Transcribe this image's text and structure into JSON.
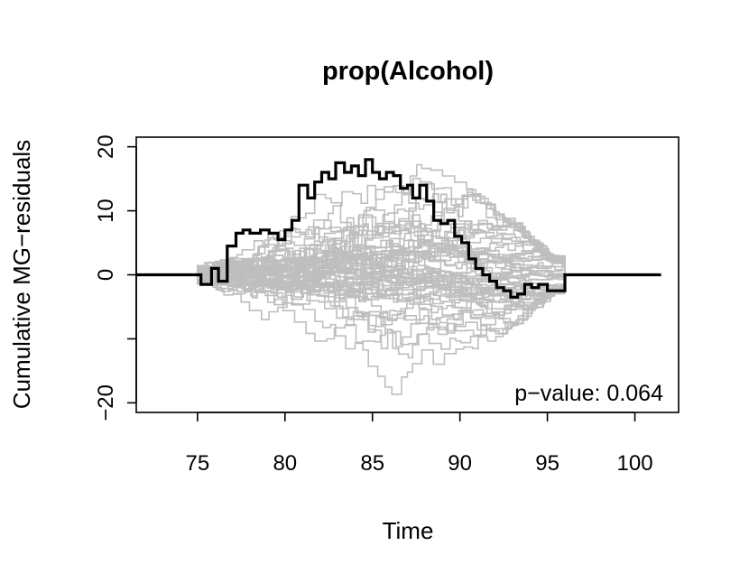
{
  "chart_data": {
    "type": "line",
    "title": "prop(Alcohol)",
    "xlabel": "Time",
    "ylabel": "Cumulative MG−residuals",
    "xlim": [
      71.5,
      102.5
    ],
    "ylim": [
      -21.5,
      21.5
    ],
    "x_ticks": [
      75,
      80,
      85,
      90,
      95,
      100
    ],
    "x_tick_labels": [
      "75",
      "80",
      "85",
      "90",
      "95",
      "100"
    ],
    "y_ticks": [
      -20,
      -10,
      0,
      10,
      20
    ],
    "y_tick_labels": [
      "−20",
      "",
      "0",
      "10",
      "20"
    ],
    "grid": false,
    "annotation": "p−value: 0.064",
    "colors": {
      "observed": "#000000",
      "simulated": "#bebebe"
    },
    "series": [
      {
        "role": "observed",
        "step": true,
        "x": [
          71.5,
          75.2,
          75.8,
          76.2,
          76.7,
          77.2,
          77.6,
          78.0,
          78.6,
          79.1,
          79.6,
          80.0,
          80.4,
          80.8,
          81.3,
          81.7,
          82.1,
          82.5,
          82.9,
          83.4,
          83.8,
          84.2,
          84.6,
          85.0,
          85.4,
          85.8,
          86.2,
          86.6,
          87.0,
          87.3,
          87.7,
          88.1,
          88.5,
          88.9,
          89.3,
          89.7,
          90.1,
          90.5,
          90.9,
          91.3,
          91.7,
          92.1,
          92.5,
          92.9,
          93.3,
          93.7,
          94.1,
          94.5,
          95.0,
          95.5,
          96.0,
          101.5
        ],
        "values": [
          0,
          -1.5,
          1.0,
          -1.0,
          4.5,
          6.5,
          7.0,
          6.5,
          7.0,
          6.5,
          5.5,
          7.0,
          8.5,
          14.0,
          12.0,
          14.5,
          16.0,
          15.0,
          17.5,
          16.0,
          17.0,
          15.5,
          18.0,
          16.0,
          15.0,
          16.0,
          15.5,
          13.5,
          14.0,
          12.0,
          14.0,
          11.5,
          8.5,
          8.0,
          8.5,
          6.0,
          5.0,
          2.5,
          1.0,
          0.0,
          -1.0,
          -2.0,
          -2.5,
          -3.5,
          -3.0,
          -1.5,
          -2.0,
          -1.5,
          -2.5,
          -2.5,
          0,
          0
        ]
      }
    ],
    "simulated_paths": {
      "count": 60,
      "x_start": 75.0,
      "x_end": 96.0,
      "value_range": [
        -19.0,
        20.0
      ]
    }
  }
}
